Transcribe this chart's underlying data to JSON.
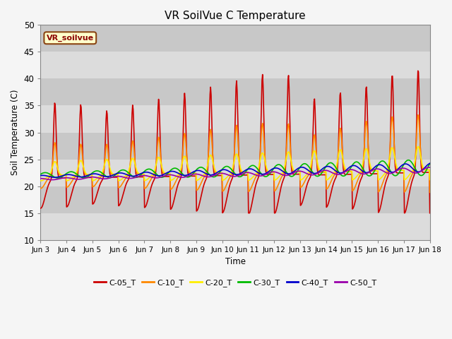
{
  "title": "VR SoilVue C Temperature",
  "xlabel": "Time",
  "ylabel": "Soil Temperature (C)",
  "ylim": [
    10,
    50
  ],
  "background_color": "#dcdcdc",
  "legend_label": "VR_soilvue",
  "legend_box_color": "#ffffcc",
  "legend_box_border": "#8B4513",
  "series": {
    "C-05_T": {
      "color": "#cc0000",
      "lw": 1.2
    },
    "C-10_T": {
      "color": "#ff8800",
      "lw": 1.2
    },
    "C-20_T": {
      "color": "#ffee00",
      "lw": 1.2
    },
    "C-30_T": {
      "color": "#00bb00",
      "lw": 1.2
    },
    "C-40_T": {
      "color": "#0000cc",
      "lw": 1.2
    },
    "C-50_T": {
      "color": "#9900aa",
      "lw": 1.2
    }
  },
  "xtick_labels": [
    "Jun 3",
    "Jun 4",
    "Jun 5",
    "Jun 6",
    "Jun 7",
    "Jun 8",
    "Jun 9",
    "Jun 10",
    "Jun 11",
    "Jun 12",
    "Jun 13",
    "Jun 14",
    "Jun 15",
    "Jun 16",
    "Jun 17",
    "Jun 18"
  ],
  "ytick_labels": [
    10,
    15,
    20,
    25,
    30,
    35,
    40,
    45,
    50
  ],
  "band_colors": [
    "#dcdcdc",
    "#c8c8c8"
  ]
}
